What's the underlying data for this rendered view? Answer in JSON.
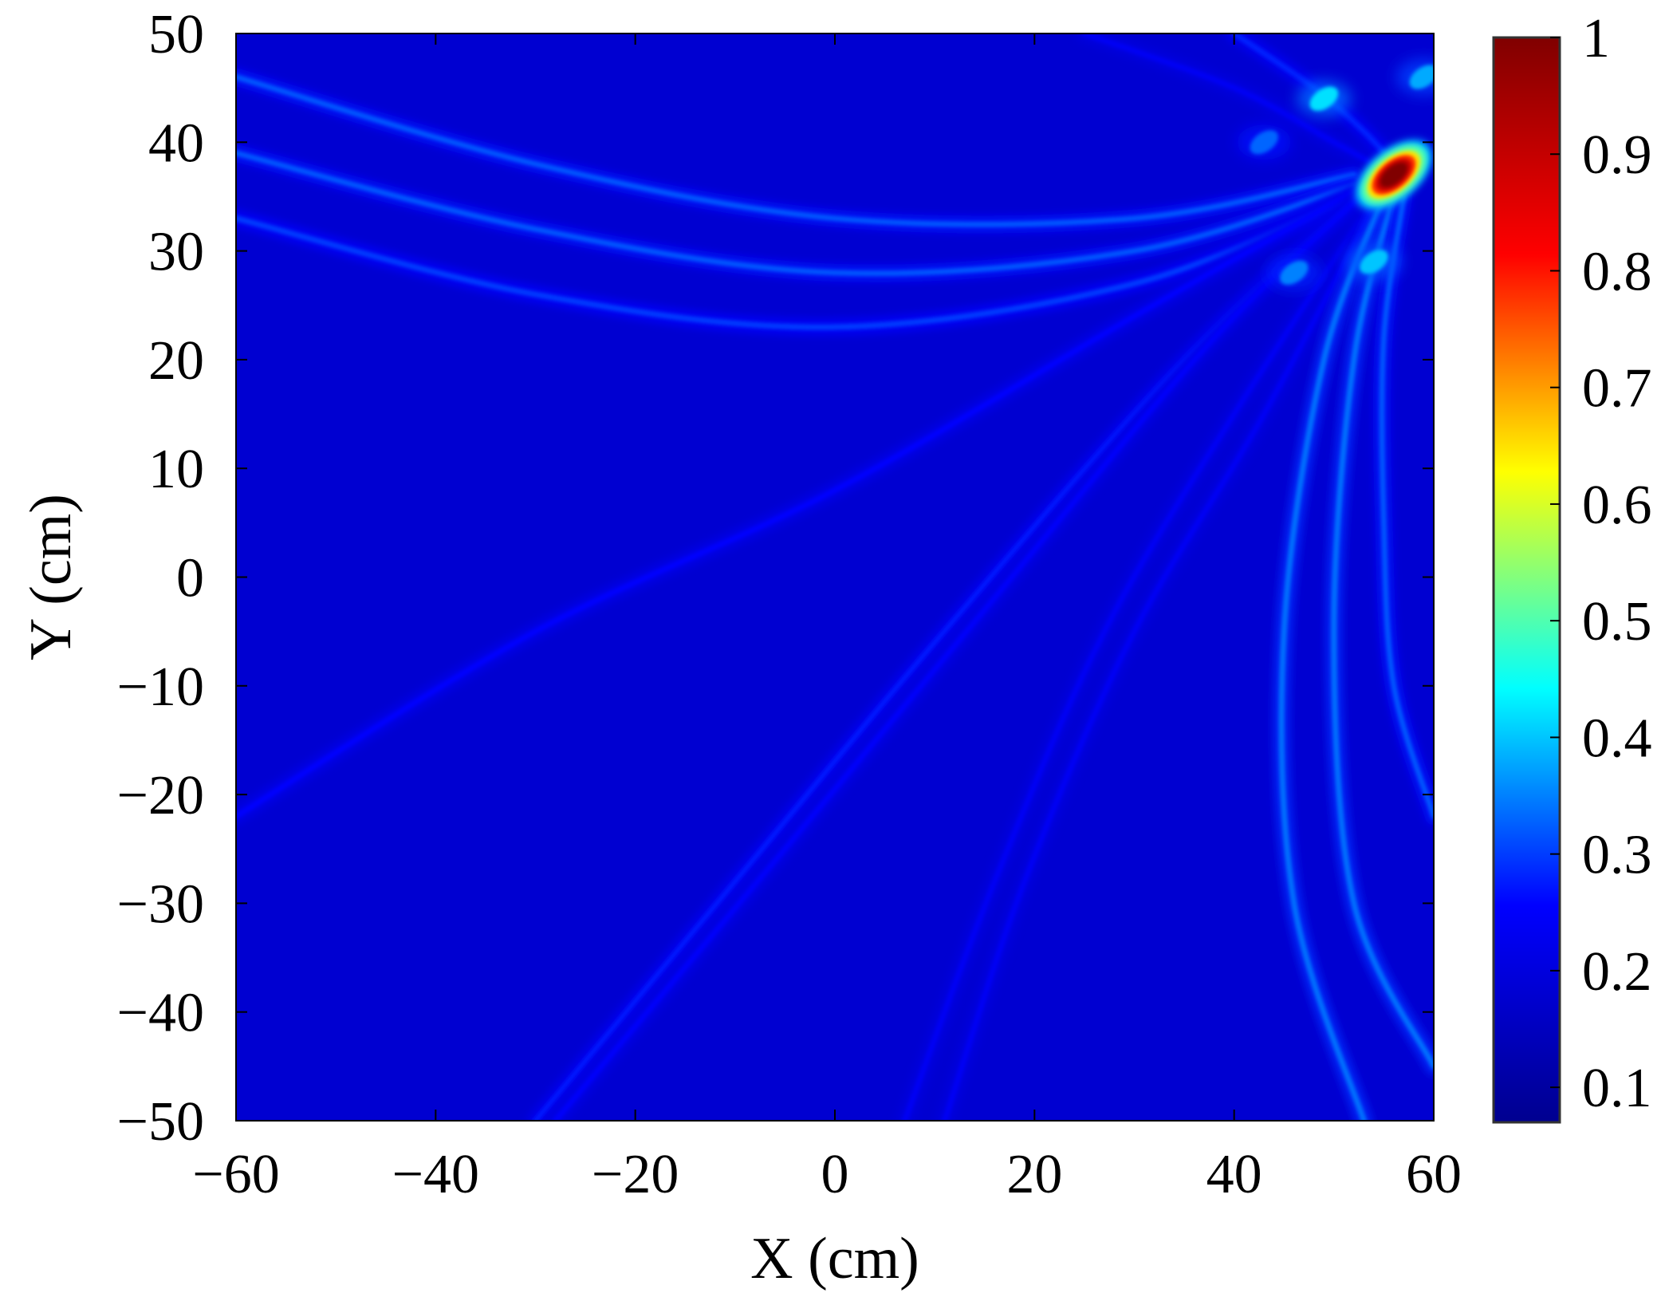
{
  "chart_data": {
    "type": "heatmap",
    "title": "",
    "xlabel": "X (cm)",
    "ylabel": "Y (cm)",
    "xlim": [
      -60,
      60
    ],
    "ylim": [
      -50,
      50
    ],
    "x_ticks": [
      -60,
      -40,
      -20,
      0,
      20,
      40,
      60
    ],
    "x_tick_labels": [
      "−60",
      "−40",
      "−20",
      "0",
      "20",
      "40",
      "60"
    ],
    "y_ticks": [
      50,
      40,
      30,
      20,
      10,
      0,
      -10,
      -20,
      -30,
      -40,
      -50
    ],
    "y_tick_labels": [
      "50",
      "40",
      "30",
      "20",
      "10",
      "0",
      "−10",
      "−20",
      "−30",
      "−40",
      "−50"
    ],
    "colorbar": {
      "range": [
        0.07,
        1.0
      ],
      "ticks": [
        1,
        0.9,
        0.8,
        0.7,
        0.6,
        0.5,
        0.4,
        0.3,
        0.2,
        0.1
      ],
      "tick_labels": [
        "1",
        "0.9",
        "0.8",
        "0.7",
        "0.6",
        "0.5",
        "0.4",
        "0.3",
        "0.2",
        "0.1"
      ],
      "colormap": "jet",
      "colormap_stops": [
        "#00008f",
        "#0000ff",
        "#00ffff",
        "#ffff00",
        "#ff0000",
        "#800000"
      ]
    },
    "background_value": 0.18,
    "peak": {
      "x": 56,
      "y": 37,
      "value": 1.0
    },
    "secondary_spots": [
      {
        "x": 49,
        "y": 44,
        "value": 0.42
      },
      {
        "x": 54,
        "y": 29,
        "value": 0.4
      },
      {
        "x": 59,
        "y": 46,
        "value": 0.38
      },
      {
        "x": 46,
        "y": 28,
        "value": 0.35
      },
      {
        "x": 43,
        "y": 40,
        "value": 0.33
      }
    ],
    "arc_traces": [
      {
        "points": [
          [
            -60,
            46
          ],
          [
            -30,
            38
          ],
          [
            0,
            33
          ],
          [
            30,
            33
          ],
          [
            52,
            37
          ]
        ],
        "intensity": 0.32
      },
      {
        "points": [
          [
            -60,
            39
          ],
          [
            -30,
            32
          ],
          [
            0,
            28
          ],
          [
            30,
            30
          ],
          [
            52,
            36
          ]
        ],
        "intensity": 0.32
      },
      {
        "points": [
          [
            -60,
            33
          ],
          [
            -30,
            26
          ],
          [
            0,
            23
          ],
          [
            30,
            27
          ],
          [
            52,
            35
          ]
        ],
        "intensity": 0.3
      },
      {
        "points": [
          [
            -60,
            -22
          ],
          [
            -30,
            -5
          ],
          [
            0,
            8
          ],
          [
            30,
            24
          ],
          [
            55,
            37
          ]
        ],
        "intensity": 0.26
      },
      {
        "points": [
          [
            -30,
            -50
          ],
          [
            -10,
            -28
          ],
          [
            10,
            -6
          ],
          [
            35,
            20
          ],
          [
            55,
            37
          ]
        ],
        "intensity": 0.27
      },
      {
        "points": [
          [
            -28,
            -50
          ],
          [
            -5,
            -25
          ],
          [
            15,
            -3
          ],
          [
            38,
            22
          ],
          [
            55,
            37
          ]
        ],
        "intensity": 0.25
      },
      {
        "points": [
          [
            7,
            -50
          ],
          [
            16,
            -28
          ],
          [
            27,
            -5
          ],
          [
            40,
            15
          ],
          [
            55,
            36
          ]
        ],
        "intensity": 0.24
      },
      {
        "points": [
          [
            11,
            -50
          ],
          [
            19,
            -28
          ],
          [
            30,
            -5
          ],
          [
            43,
            15
          ],
          [
            55,
            36
          ]
        ],
        "intensity": 0.24
      },
      {
        "points": [
          [
            53,
            -50
          ],
          [
            46,
            -30
          ],
          [
            45,
            -5
          ],
          [
            49,
            20
          ],
          [
            55,
            35
          ]
        ],
        "intensity": 0.34
      },
      {
        "points": [
          [
            60,
            -45
          ],
          [
            52,
            -30
          ],
          [
            50,
            -5
          ],
          [
            52,
            20
          ],
          [
            56,
            35
          ]
        ],
        "intensity": 0.34
      },
      {
        "points": [
          [
            60,
            -22
          ],
          [
            56,
            -10
          ],
          [
            55,
            5
          ],
          [
            55,
            22
          ],
          [
            57,
            35
          ]
        ],
        "intensity": 0.32
      },
      {
        "points": [
          [
            25,
            50
          ],
          [
            40,
            45
          ],
          [
            50,
            40
          ],
          [
            56,
            37
          ]
        ],
        "intensity": 0.24
      },
      {
        "points": [
          [
            40,
            50
          ],
          [
            48,
            45
          ],
          [
            53,
            41
          ],
          [
            56,
            38
          ]
        ],
        "intensity": 0.28
      }
    ]
  }
}
